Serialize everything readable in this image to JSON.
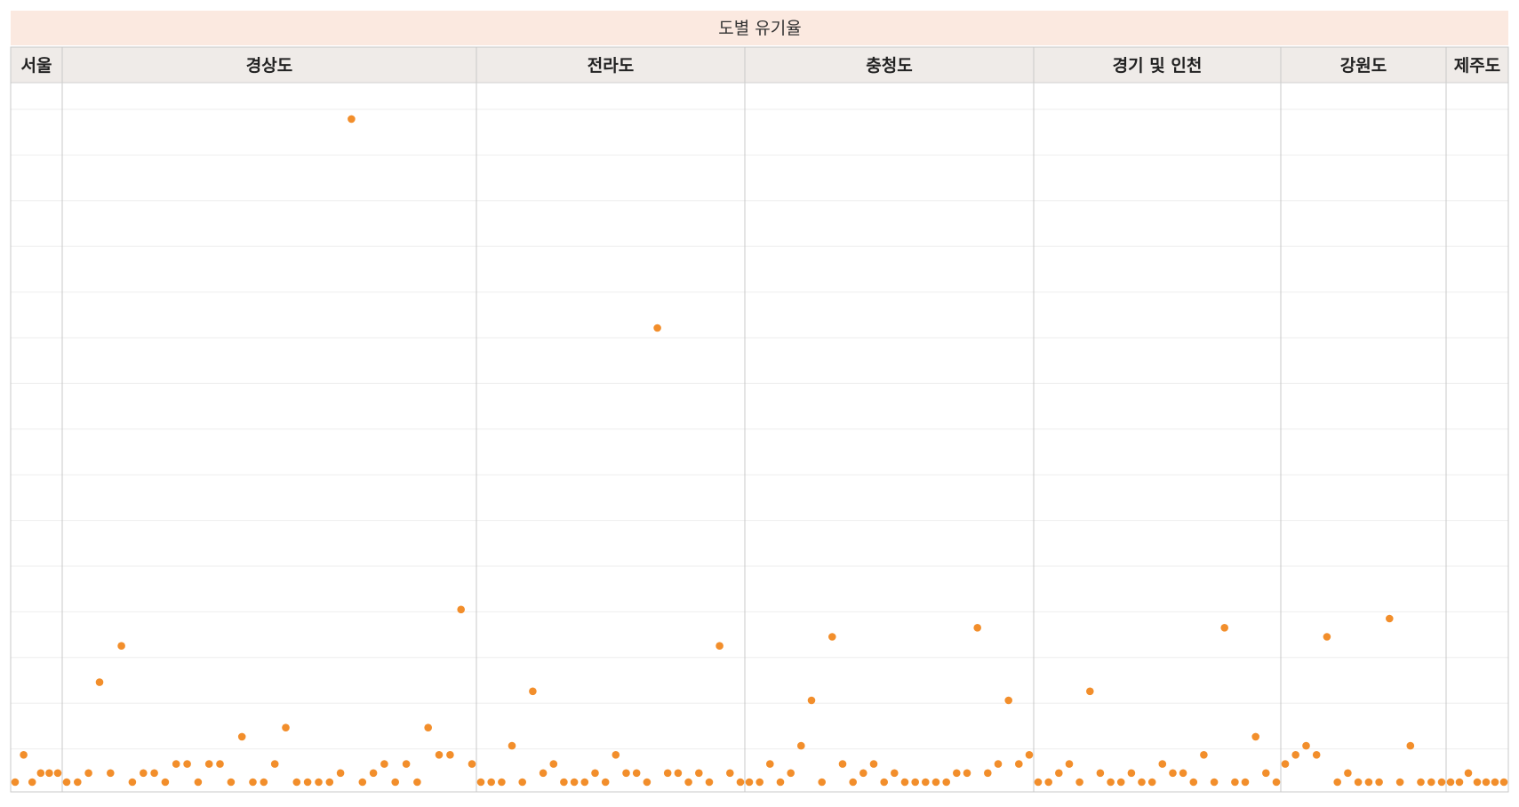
{
  "chart_data": {
    "type": "scatter",
    "title": "도별 유기율",
    "grid": true,
    "panels": [
      {
        "name": "서울",
        "values": [
          0,
          3,
          0,
          1,
          1,
          1
        ]
      },
      {
        "name": "경상도",
        "values": [
          0,
          0,
          1,
          11,
          1,
          15,
          0,
          1,
          1,
          0,
          2,
          2,
          0,
          2,
          2,
          0,
          5,
          0,
          0,
          2,
          6,
          0,
          0,
          0,
          0,
          1,
          73,
          0,
          1,
          2,
          0,
          2,
          0,
          6,
          3,
          3,
          19,
          2
        ]
      },
      {
        "name": "전라도",
        "values": [
          0,
          0,
          0,
          4,
          0,
          10,
          1,
          2,
          0,
          0,
          0,
          1,
          0,
          3,
          1,
          1,
          0,
          50,
          1,
          1,
          0,
          1,
          0,
          15,
          1,
          0
        ]
      },
      {
        "name": "충청도",
        "values": [
          0,
          0,
          2,
          0,
          1,
          4,
          9,
          0,
          16,
          2,
          0,
          1,
          2,
          0,
          1,
          0,
          0,
          0,
          0,
          0,
          1,
          1,
          17,
          1,
          2,
          9,
          2,
          3
        ]
      },
      {
        "name": "경기 및 인천",
        "values": [
          0,
          0,
          1,
          2,
          0,
          10,
          1,
          0,
          0,
          1,
          0,
          0,
          2,
          1,
          1,
          0,
          3,
          0,
          17,
          0,
          0,
          5,
          1,
          0
        ]
      },
      {
        "name": "강원도",
        "values": [
          2,
          3,
          4,
          3,
          16,
          0,
          1,
          0,
          0,
          0,
          18,
          0,
          4,
          0,
          0,
          0
        ]
      },
      {
        "name": "제주도",
        "values": [
          0,
          0,
          1,
          0,
          0,
          0,
          0
        ]
      }
    ]
  }
}
